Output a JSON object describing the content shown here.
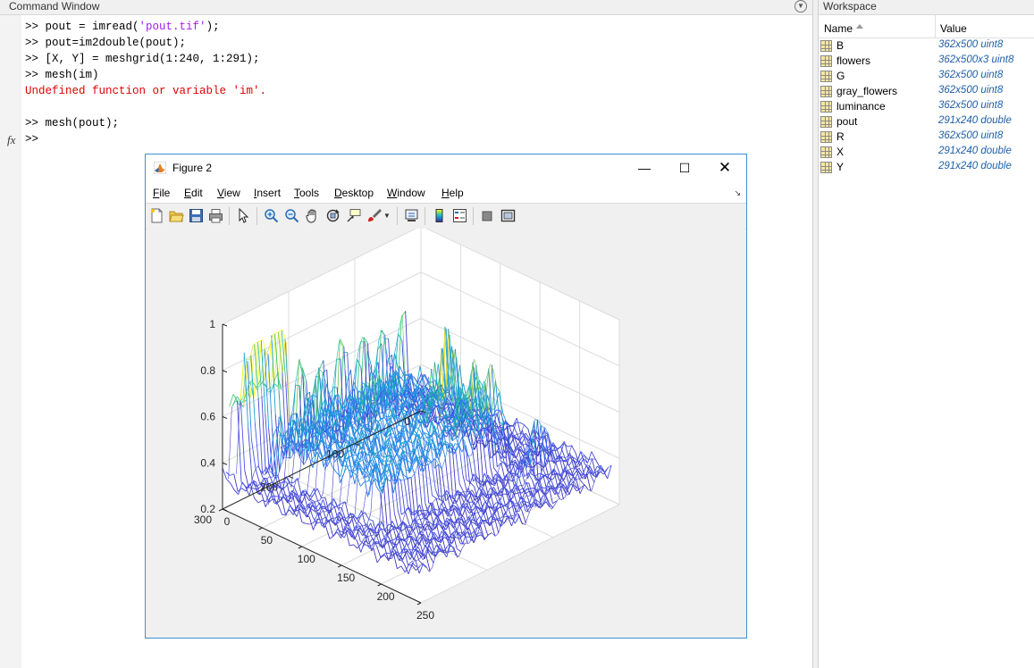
{
  "command_window": {
    "title": "Command Window",
    "lines": [
      {
        "prompt": ">> ",
        "pre": "pout = imread(",
        "str": "'pout.tif'",
        "post": ");"
      },
      {
        "prompt": ">> ",
        "pre": "pout=im2double(pout);",
        "str": "",
        "post": ""
      },
      {
        "prompt": ">> ",
        "pre": "[X, Y] = meshgrid(1:240, 1:291);",
        "str": "",
        "post": ""
      },
      {
        "prompt": ">> ",
        "pre": "mesh(im)",
        "str": "",
        "post": ""
      },
      {
        "prompt": "",
        "pre": "Undefined function or variable 'im'.",
        "str": "",
        "post": ""
      },
      {
        "prompt": ">> ",
        "pre": "mesh(pout);",
        "str": "",
        "post": ""
      },
      {
        "prompt": ">> ",
        "pre": "",
        "str": "",
        "post": ""
      }
    ],
    "fx_label": "fx"
  },
  "workspace": {
    "title": "Workspace",
    "col_name": "Name",
    "col_value": "Value",
    "variables": [
      {
        "name": "B",
        "value": "362x500 uint8"
      },
      {
        "name": "flowers",
        "value": "362x500x3 uint8"
      },
      {
        "name": "G",
        "value": "362x500 uint8"
      },
      {
        "name": "gray_flowers",
        "value": "362x500 uint8"
      },
      {
        "name": "luminance",
        "value": "362x500 uint8"
      },
      {
        "name": "pout",
        "value": "291x240 double"
      },
      {
        "name": "R",
        "value": "362x500 uint8"
      },
      {
        "name": "X",
        "value": "291x240 double"
      },
      {
        "name": "Y",
        "value": "291x240 double"
      }
    ]
  },
  "figure": {
    "title": "Figure 2",
    "menu": [
      {
        "label": "File",
        "key": "F"
      },
      {
        "label": "Edit",
        "key": "E"
      },
      {
        "label": "View",
        "key": "V"
      },
      {
        "label": "Insert",
        "key": "I"
      },
      {
        "label": "Tools",
        "key": "T"
      },
      {
        "label": "Desktop",
        "key": "D"
      },
      {
        "label": "Window",
        "key": "W"
      },
      {
        "label": "Help",
        "key": "H"
      }
    ],
    "toolbar_icons": [
      "new-figure-icon",
      "open-file-icon",
      "save-icon",
      "print-icon",
      "edit-plot-icon",
      "zoom-in-icon",
      "zoom-out-icon",
      "pan-icon",
      "rotate-3d-icon",
      "data-cursor-icon",
      "brush-icon",
      "link-plot-icon",
      "insert-colorbar-icon",
      "insert-legend-icon",
      "hide-plot-tools-icon",
      "show-plot-tools-icon"
    ]
  },
  "chart_data": {
    "type": "mesh",
    "title": "",
    "xlabel": "",
    "ylabel": "",
    "zlabel": "",
    "x_ticks": [
      0,
      50,
      100,
      150,
      200,
      250
    ],
    "y_ticks": [
      0,
      100,
      200,
      300
    ],
    "z_ticks": [
      0.2,
      0.4,
      0.6,
      0.8,
      1
    ],
    "xlim": [
      0,
      250
    ],
    "ylim": [
      0,
      300
    ],
    "zlim": [
      0.2,
      1
    ],
    "grid": true,
    "colormap": "parula"
  }
}
